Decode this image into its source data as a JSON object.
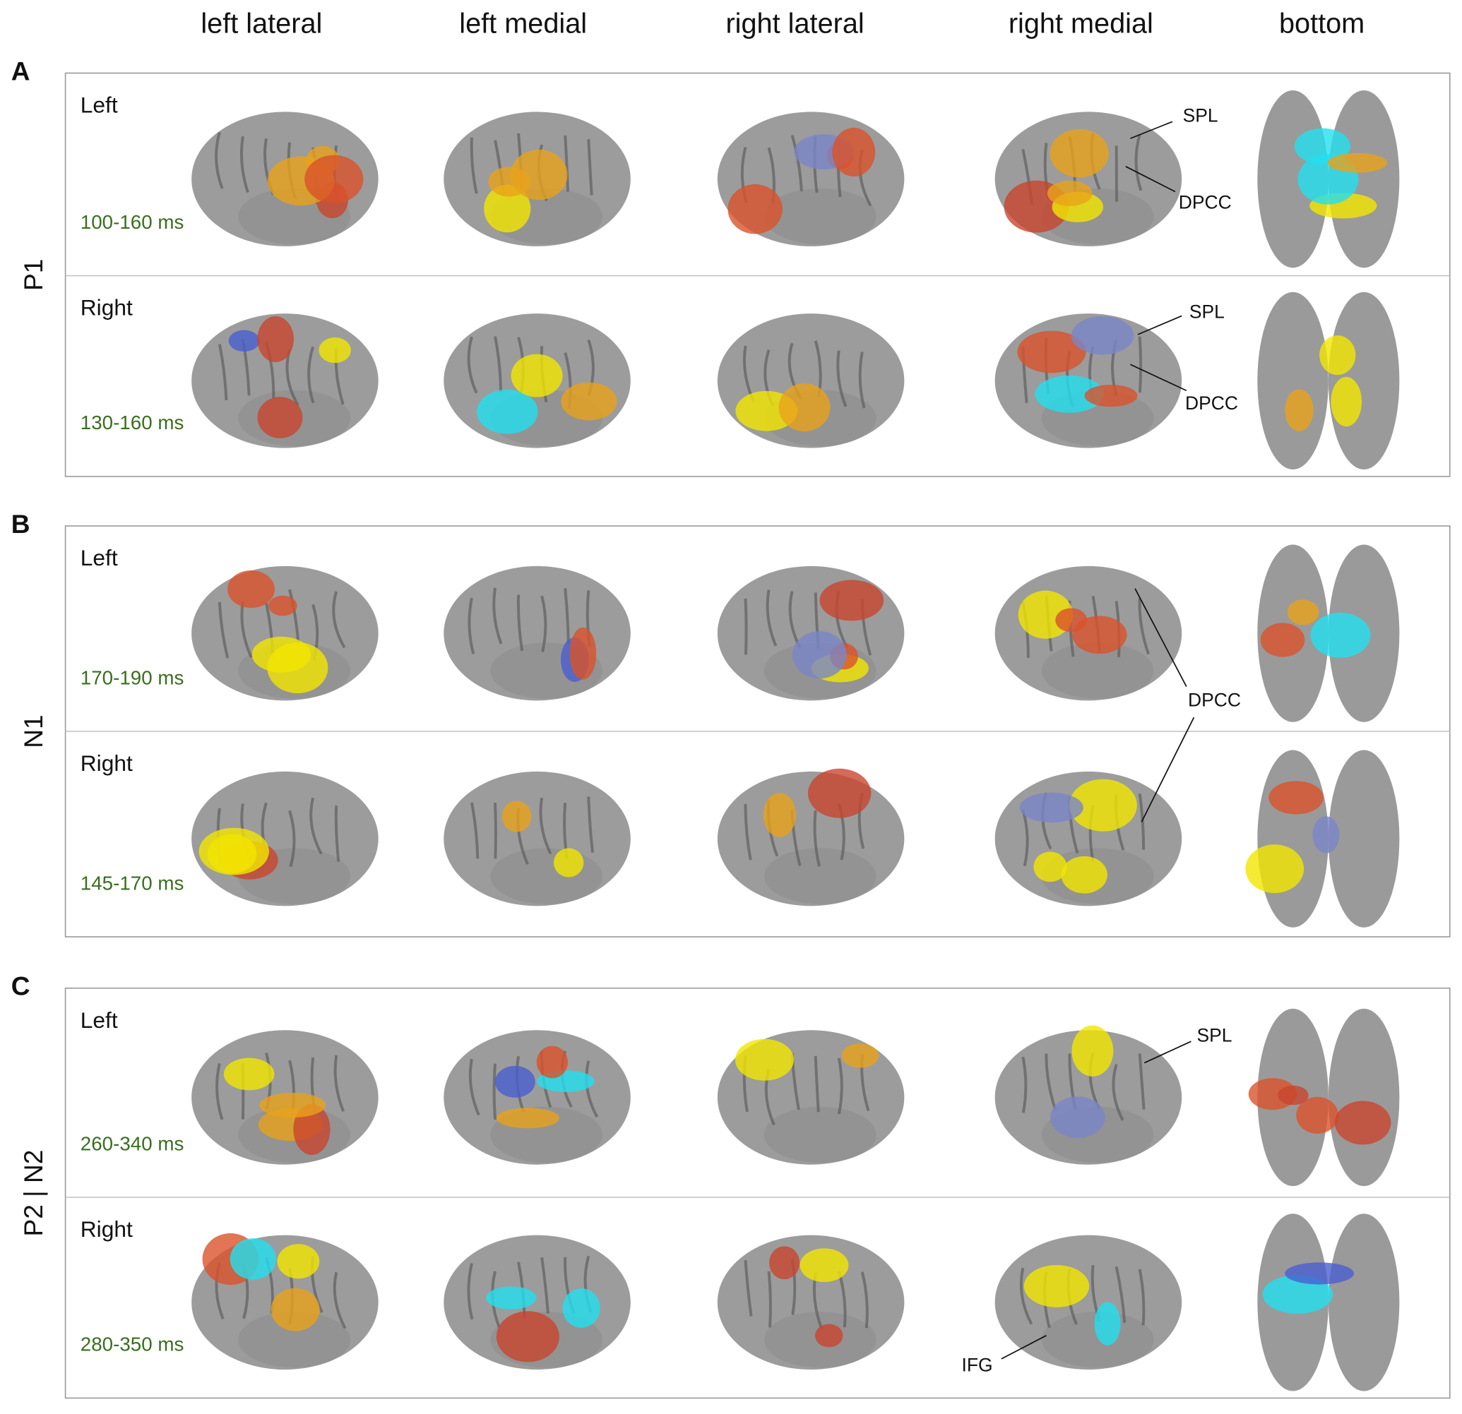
{
  "column_headers": [
    "left lateral",
    "left medial",
    "right lateral",
    "right medial",
    "bottom"
  ],
  "panels": [
    {
      "letter": "A",
      "component": "P1",
      "rows": [
        {
          "hemisphere": "Left",
          "time": "100-160 ms"
        },
        {
          "hemisphere": "Right",
          "time": "130-160 ms"
        }
      ],
      "annotations": [
        "SPL",
        "DPCC",
        "SPL",
        "DPCC"
      ]
    },
    {
      "letter": "B",
      "component": "N1",
      "rows": [
        {
          "hemisphere": "Left",
          "time": "170-190 ms"
        },
        {
          "hemisphere": "Right",
          "time": "145-170 ms"
        }
      ],
      "annotations": [
        "DPCC"
      ]
    },
    {
      "letter": "C",
      "component": "P2 | N2",
      "rows": [
        {
          "hemisphere": "Left",
          "time": "260-340 ms"
        },
        {
          "hemisphere": "Right",
          "time": "280-350 ms"
        }
      ],
      "annotations": [
        "SPL",
        "IFG"
      ]
    }
  ]
}
